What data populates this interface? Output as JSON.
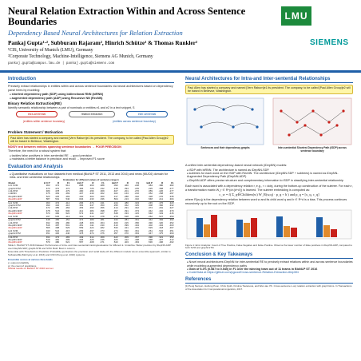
{
  "header": {
    "title_line1": "Neural Relation Extraction Within and Across Sentence",
    "title_line2": "Boundaries",
    "subtitle": "Dependency Based Neural Architectures for Relation Extraction",
    "authors": "Pankaj Gupta¹·², Subburam Rajaram², Hinrich Schütze¹ & Thomas Runkler²",
    "aff1": "¹CIS, University of Munich (LMU), Germany",
    "aff2": "²Corporate Technology, Machine-Intelligence, Siemens AG Munich, Germany",
    "email": "pankaj.gupta@campus.lmu.de | pankaj.gupta@siemens.com",
    "logo_lmu": "LMU",
    "logo_siemens": "SIEMENS"
  },
  "left": {
    "intro_h": "Introduction",
    "intro_p": "Precisely extract relationships in entities within and across sentence boundaries via neural architectures based on dependency parse trees by modeling:",
    "intro_b1": "shortest dependency path (SDP) using bidirectional RNN (biRNN)",
    "intro_b2": "augmented dependency path (ADP) using Recursive NN (RecNN)",
    "binary_h": "Binary Relation Extraction(RE)",
    "binary_p": "Identify semantic relationship between a pair of nominals or entities e1 and e2 in a text snippet, S",
    "diag_left": "intra-sentential",
    "diag_mid": "relation extraction",
    "diag_right": "inter-sentential",
    "diag_sub1": "(entities within sentence boundary)",
    "diag_sub2": "(entities across sentence boundary)",
    "problem_h": "Problem Statement / Motivation",
    "problem_box": "Paul Allen has started a company and named [Vern Raburn]e1 its president. The company, to be called [Paul Allen Group]e2 will be based in Bellevue, Washington.",
    "noise": "NOISY text between entities spanning sentence boundaries → POOR PRECISION",
    "therefore": "Therefore, the need for a robust system that:",
    "need_b1": "tackles false positives in inter-sentential RE → good precision",
    "need_b2": "maintains a better balance in precision and recall → improved F1 score",
    "eval_h": "Evaluation and Analysis",
    "eval_b1": "Quantitative evaluations on four datasets from medical (BioNLP ST 2011, 2013 and 2016) and news (MUC6) domain for intra- and inter-sentential relationships",
    "caption": "Table 1: BioNLP ST 2016 Dataset: Performance of intra- and inter-sentential training/evaluation for different k. Underline: Better precision by iDepNN-ADP over iDepNN-SDP, graphLSTM and SVM. Bold: Best in column.",
    "ensemble": "Ensemble with Threshold on Prediction Probability (p) Explore the precision and recall trade-off; the different models via an ensemble approach, similar to SoftwareRE-(Mehryary et al. 2016) and CNN (Peng et al. 2016) systems.",
    "bottom_note": "Ensemble scores at various thresholds",
    "bottom_note2": "p: output probability",
    "bottom_note3": "pr: the count of predictions",
    "official": "Official results on BioNLP ST 2016 test set"
  },
  "table": {
    "header_top": "Evaluation for different values of sentence range k",
    "cols": [
      "Model",
      "k=0 P",
      "R",
      "F1",
      "k≤1 P",
      "R",
      "F1",
      "k≤2 P",
      "R",
      "F1",
      "k≤3 P",
      "R",
      "F1"
    ],
    "rows": [
      [
        "k=0 SVM",
        "363",
        "474",
        ".512",
        ".888",
        ".360",
        ".088",
        ".093",
        ".460",
        ".228",
        ".384",
        ".380",
        ".382"
      ],
      [
        "graphLSTM",
        "473",
        "472",
        "472",
        "406",
        ".725",
        ".232",
        ".218",
        ".394",
        ".225",
        ".225",
        ".358",
        ".277"
      ],
      [
        "i-biLSTM",
        "480",
        "478",
        ".479",
        ".490",
        ".296",
        ".369",
        ".407",
        ".201",
        ".270",
        ".359",
        ".226",
        ".277"
      ],
      [
        "i-biRNN",
        "475",
        "463",
        ".469",
        ".407",
        ".240",
        ".302",
        ".322",
        ".163",
        ".216",
        ".352",
        ".258",
        ".297"
      ],
      [
        "iDepNN-SDP",
        "523",
        "425",
        ".469",
        ".440",
        ".304",
        ".360",
        ".317",
        ".288",
        ".302",
        ".428",
        ".276",
        ".335"
      ],
      [
        "iDepNN-ADP",
        "587",
        "501",
        "540",
        ".604",
        ".233",
        ".336",
        ".564",
        ".213",
        ".310",
        ".548",
        ".211",
        ".304"
      ],
      [
        "k≤1 SVM",
        "363",
        "474",
        ".412",
        ".266",
        ".474",
        ".341",
        ".244",
        ".480",
        ".323",
        ".245",
        ".476",
        ".323"
      ],
      [
        "graphLSTM",
        "390",
        "446",
        ".416",
        ".354",
        ".347",
        ".350",
        ".295",
        ".362",
        ".325",
        ".308",
        ".360",
        ".332"
      ],
      [
        "i-biLSTM",
        "472",
        "455",
        ".463",
        ".453",
        ".293",
        ".356",
        ".414",
        ".291",
        ".342",
        ".374",
        ".291",
        ".327"
      ],
      [
        "iDepNN-SDP",
        "478",
        "524",
        ".500",
        ".412",
        ".384",
        ".398",
        ".357",
        ".391",
        ".373",
        ".342",
        ".402",
        ".370"
      ],
      [
        "iDepNN-ADP",
        "570",
        "482",
        ".522",
        ".573",
        ".341",
        ".427",
        ".548",
        ".333",
        ".415",
        ".548",
        ".333",
        ".415"
      ],
      [
        "k≤2 SVM",
        "337",
        "535",
        ".413",
        ".301",
        ".510",
        ".378",
        ".279",
        ".528",
        ".365",
        ".262",
        ".527",
        ".350"
      ],
      [
        "graphLSTM",
        "448",
        "456",
        ".452",
        ".374",
        ".389",
        ".381",
        ".343",
        ".381",
        ".361",
        ".342",
        ".384",
        ".362"
      ],
      [
        "i-biLSTM",
        "492",
        "469",
        ".480",
        ".448",
        ".306",
        ".364",
        ".409",
        ".315",
        ".356",
        ".390",
        ".320",
        ".352"
      ],
      [
        "iDepNN-SDP",
        "516",
        "487",
        ".501",
        ".451",
        ".411",
        ".430",
        ".410",
        ".399",
        ".404",
        ".402",
        ".404",
        ".403"
      ],
      [
        "iDepNN-ADP",
        "565",
        "498",
        ".529",
        ".559",
        ".424",
        ".482",
        ".533",
        ".421",
        ".470",
        ".529",
        ".418",
        ".467"
      ],
      [
        "k≤3 SVM",
        "343",
        "524",
        ".415",
        ".299",
        ".497",
        ".373",
        ".274",
        ".530",
        ".361",
        ".261",
        ".534",
        ".351"
      ],
      [
        "graphLSTM",
        "451",
        "430",
        ".440",
        ".378",
        ".374",
        ".376",
        ".357",
        ".370",
        ".363",
        ".347",
        ".375",
        ".360"
      ],
      [
        "i-biLSTM",
        "494",
        "473",
        ".483",
        ".449",
        ".314",
        ".369",
        ".422",
        ".309",
        ".357",
        ".390",
        ".321",
        ".352"
      ],
      [
        "iDepNN-SDP",
        "519",
        "481",
        ".499",
        ".446",
        ".426",
        ".436",
        ".405",
        ".412",
        ".408",
        ".398",
        ".427",
        ".412"
      ],
      [
        "iDepNN-ADP",
        "570",
        "480",
        ".521",
        ".557",
        ".408",
        ".471",
        ".543",
        ".403",
        ".463",
        ".536",
        ".406",
        ".462"
      ]
    ]
  },
  "right": {
    "arch_h": "Neural Architectures for Intra-and Inter-sentential Relationships",
    "arch_box": "Paul Allen has started a company and named [Vern Raburn]e1 its president. The company, to be called [Paul Allen Group]e2 will be based in Bellevue, Washington.",
    "fig_label1": "Sentences and their dependency graphs",
    "fig_label2": "Inter-sentential Shortest Dependency Path (iSDP) across sentence boundary",
    "fig_desc1": "A unified inter-sentential dependency-based neural network (iDepNN) models:",
    "fig_b1": "iSDP with biRNN. The architecture is named as iDepNN-SDP.",
    "fig_b2": "subtrees for each word on the iSDP with RecNN. The architecture (iDepNN-SDP + subtrees) is named as iDepNN-Augmented Dependency Path (iDepNN-ADP)",
    "fig_b3": "iDepNN-ADP offers precise structure and complementary information to iSDP in classifying inter-sentential relationship",
    "subtree_p": "Each word is associated with a dependency relation r, e.g., r = dobj, during the bottom-up construction of the subtree. For each r, a transformation matrix W_r ∈ R^(d×(d+d')) is learned. The subtree embedding is computed as:",
    "eq": "c_w = f( Σ_q∈Children(w) W_R(w,q) · p_q + b ) and p_q = [x_q, c_q]",
    "eq_desc": "where R(w,q) is the dependency relation between word w and its child word q and b ∈ R^d is a bias. This process continues recursively up to the root on the iSDP.",
    "fig_caption": "Figure 1: Error Analysis: Count of True Positive, False Negative and False Positive. Observe the lower number of false positives in iDepNN-ADP, compared to both SVM and graphLSTM.",
    "conclusion_h": "Conclusion & Key Takeaways",
    "concl_b1": "Novel neural architectures iDepNN for inter-sentential RE to precisely extract relations within and across sentence boundaries while modeling augmented dependency paths",
    "concl_b2": "Gain of 5.2% (0.587 to 0.540) in F1 over the winning team out of 11 teams in BioNLP ST 2016",
    "concl_b3": "Code/Data at https://github.com/pgcool/Cross-sentence-Relation-Extraction-iDepNN",
    "ref_h": "References",
    "ref_p": "[1] Peng Nanyun, Hoifung Poon, Chris Quirk, Kristina Toutanova, and Wen-tau Yih. Cross-sentence n-ary relation extraction with graph lstms. In Transactions of the Association for Computational Linguistics, 2017."
  }
}
